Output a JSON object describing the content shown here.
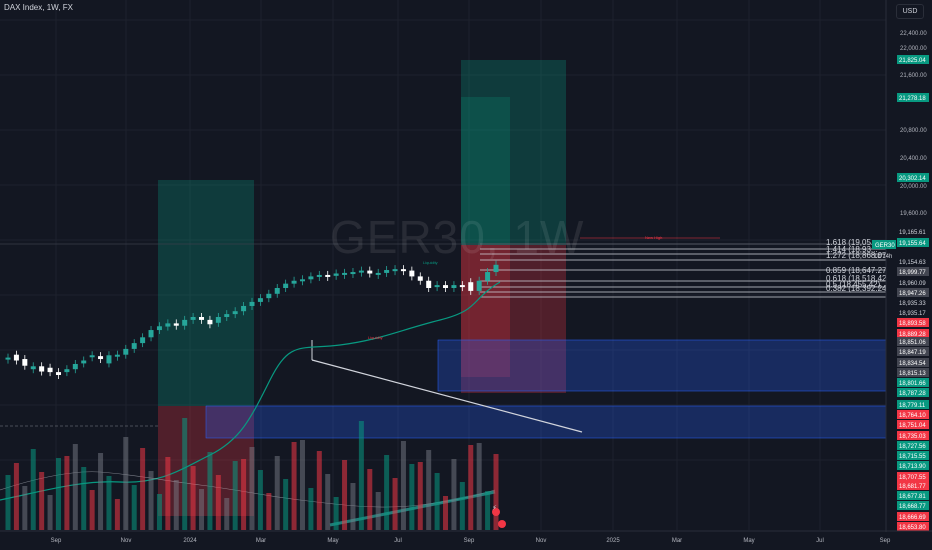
{
  "header": {
    "title": "DAX Index, 1W, FX"
  },
  "currency_button": "USD",
  "watermark": "GER30, 1W",
  "chart_data": {
    "type": "candlestick",
    "symbol": "GER30",
    "price_axis_ticks": [
      22400,
      22000,
      21600,
      20800,
      20400,
      20000,
      19600
    ],
    "price_axis_tick_labels": [
      "22,400.00",
      "22,000.00",
      "21,600.00",
      "20,800.00",
      "20,400.00",
      "20,000.00",
      "19,600.00"
    ],
    "price_labels": [
      {
        "text": "21,825.04",
        "color": "#089981"
      },
      {
        "text": "21,278.18",
        "color": "#089981"
      },
      {
        "text": "20,302.14",
        "color": "#089981"
      },
      {
        "text": "19,165.61",
        "color": "#131722",
        "fg": "#d1d4dc"
      },
      {
        "text": "19,155.64",
        "color": "#089981"
      },
      {
        "text": "19,154.63",
        "color": "#131722",
        "fg": "#d1d4dc"
      },
      {
        "text": "18,999.77",
        "color": "#434651"
      },
      {
        "text": "18,960.09",
        "color": "#131722",
        "fg": "#d1d4dc"
      },
      {
        "text": "18,947.26",
        "color": "#434651"
      },
      {
        "text": "18,935.33",
        "color": "#131722",
        "fg": "#d1d4dc"
      },
      {
        "text": "18,935.17",
        "color": "#131722",
        "fg": "#d1d4dc"
      },
      {
        "text": "18,893.58",
        "color": "#f23645"
      },
      {
        "text": "18,889.28",
        "color": "#f23645"
      },
      {
        "text": "18,851.06",
        "color": "#434651"
      },
      {
        "text": "18,847.19",
        "color": "#434651"
      },
      {
        "text": "18,834.54",
        "color": "#434651"
      },
      {
        "text": "18,815.13",
        "color": "#434651"
      },
      {
        "text": "18,801.66",
        "color": "#089981"
      },
      {
        "text": "18,787.28",
        "color": "#089981"
      },
      {
        "text": "18,779.11",
        "color": "#089981"
      },
      {
        "text": "18,764.10",
        "color": "#f23645"
      },
      {
        "text": "18,751.04",
        "color": "#f23645"
      },
      {
        "text": "18,735.03",
        "color": "#f23645"
      },
      {
        "text": "18,727.56",
        "color": "#089981"
      },
      {
        "text": "18,715.55",
        "color": "#089981"
      },
      {
        "text": "18,713.90",
        "color": "#089981"
      },
      {
        "text": "18,707.55",
        "color": "#f23645"
      },
      {
        "text": "18,681.77",
        "color": "#f23645"
      },
      {
        "text": "18,677.81",
        "color": "#089981"
      },
      {
        "text": "18,668.77",
        "color": "#089981"
      },
      {
        "text": "18,666.69",
        "color": "#f23645"
      },
      {
        "text": "18,653.80",
        "color": "#f23645"
      }
    ],
    "time_axis_labels": [
      "Sep",
      "Nov",
      "2024",
      "Mar",
      "May",
      "Jul",
      "Sep",
      "Nov",
      "2025",
      "Mar",
      "May",
      "Jul",
      "Sep"
    ],
    "fib_levels": [
      "1.618 (19,05...",
      "1.414 (18,93...",
      "1.272 (18,868.07)",
      "0.859 (18,647.27)",
      "0.618 (18,518.42)",
      "0.5 (18,455.42)",
      "0.382 (18,392.24)"
    ],
    "chart_badges": [
      "1d 14h"
    ],
    "candles": [
      {
        "o": 0.445,
        "c": 0.44
      },
      {
        "o": 0.43,
        "c": 0.45
      },
      {
        "o": 0.445,
        "c": 0.468
      },
      {
        "o": 0.48,
        "c": 0.47
      },
      {
        "o": 0.47,
        "c": 0.488
      },
      {
        "o": 0.475,
        "c": 0.49
      },
      {
        "o": 0.49,
        "c": 0.5
      },
      {
        "o": 0.49,
        "c": 0.48
      },
      {
        "o": 0.48,
        "c": 0.462
      },
      {
        "o": 0.46,
        "c": 0.45
      },
      {
        "o": 0.435,
        "c": 0.432
      },
      {
        "o": 0.435,
        "c": 0.445
      },
      {
        "o": 0.46,
        "c": 0.432
      },
      {
        "o": 0.435,
        "c": 0.43
      },
      {
        "o": 0.43,
        "c": 0.41
      },
      {
        "o": 0.41,
        "c": 0.39
      },
      {
        "o": 0.39,
        "c": 0.37
      },
      {
        "o": 0.37,
        "c": 0.345
      },
      {
        "o": 0.345,
        "c": 0.332
      },
      {
        "o": 0.333,
        "c": 0.322
      },
      {
        "o": 0.322,
        "c": 0.33
      },
      {
        "o": 0.33,
        "c": 0.31
      },
      {
        "o": 0.31,
        "c": 0.3
      },
      {
        "o": 0.3,
        "c": 0.31
      },
      {
        "o": 0.31,
        "c": 0.325
      },
      {
        "o": 0.32,
        "c": 0.3
      },
      {
        "o": 0.3,
        "c": 0.29
      },
      {
        "o": 0.29,
        "c": 0.28
      },
      {
        "o": 0.28,
        "c": 0.262
      },
      {
        "o": 0.262,
        "c": 0.248
      },
      {
        "o": 0.248,
        "c": 0.235
      },
      {
        "o": 0.235,
        "c": 0.22
      },
      {
        "o": 0.22,
        "c": 0.2
      },
      {
        "o": 0.2,
        "c": 0.185
      },
      {
        "o": 0.185,
        "c": 0.175
      },
      {
        "o": 0.175,
        "c": 0.17
      },
      {
        "o": 0.17,
        "c": 0.16
      },
      {
        "o": 0.16,
        "c": 0.155
      },
      {
        "o": 0.155,
        "c": 0.158
      },
      {
        "o": 0.158,
        "c": 0.15
      },
      {
        "o": 0.15,
        "c": 0.148
      },
      {
        "o": 0.148,
        "c": 0.145
      },
      {
        "o": 0.145,
        "c": 0.14
      },
      {
        "o": 0.14,
        "c": 0.15
      },
      {
        "o": 0.15,
        "c": 0.148
      },
      {
        "o": 0.148,
        "c": 0.138
      },
      {
        "o": 0.138,
        "c": 0.135
      },
      {
        "o": 0.135,
        "c": 0.14
      },
      {
        "o": 0.14,
        "c": 0.16
      },
      {
        "o": 0.16,
        "c": 0.175
      },
      {
        "o": 0.175,
        "c": 0.2
      },
      {
        "o": 0.195,
        "c": 0.19
      },
      {
        "o": 0.19,
        "c": 0.2
      },
      {
        "o": 0.2,
        "c": 0.19
      },
      {
        "o": 0.19,
        "c": 0.195
      },
      {
        "o": 0.18,
        "c": 0.21
      },
      {
        "o": 0.21,
        "c": 0.175
      },
      {
        "o": 0.175,
        "c": 0.145
      },
      {
        "o": 0.145,
        "c": 0.12
      }
    ]
  }
}
